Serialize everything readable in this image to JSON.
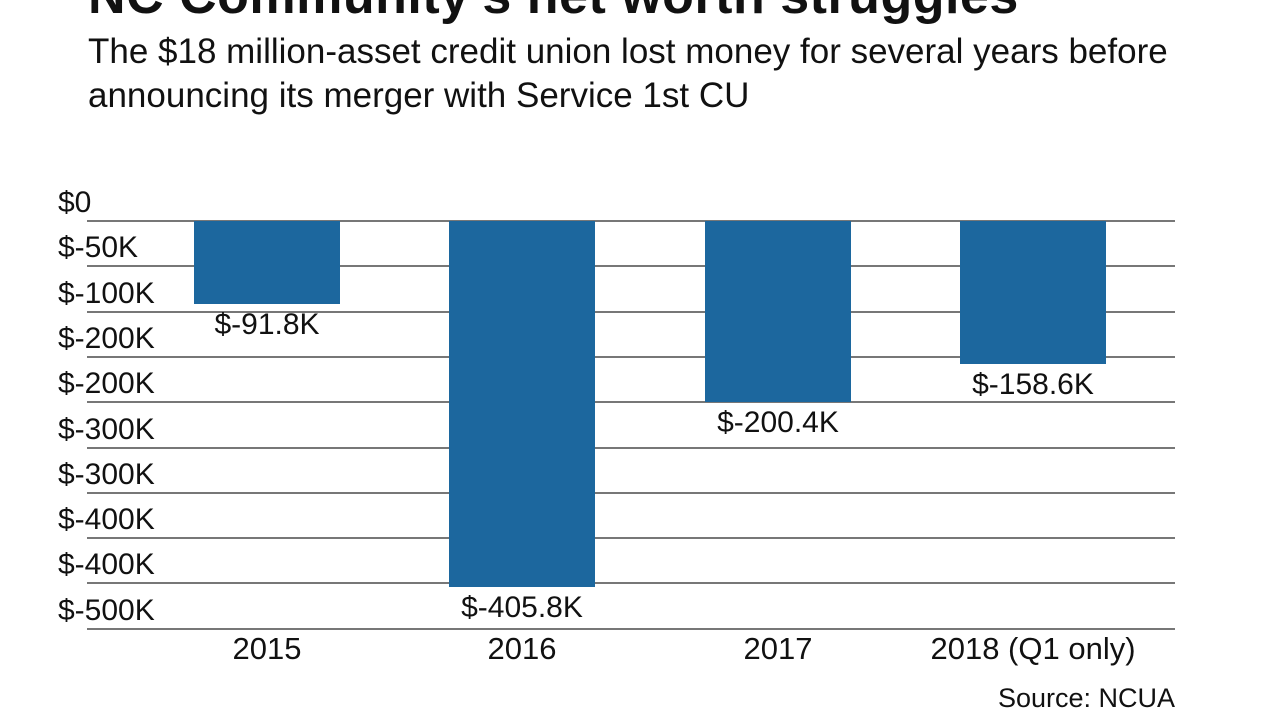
{
  "header": {
    "title": "NC Community's net worth struggles",
    "subtitle": "The $18 million-asset credit union lost money for several years before announcing its merger with Service 1st CU"
  },
  "source": "Source: NCUA",
  "colors": {
    "bar": "#1c679e",
    "grid": "#777777"
  },
  "chart_data": {
    "type": "bar",
    "title": "NC Community's net worth struggles",
    "subtitle": "The $18 million-asset credit union lost money for several years before announcing its merger with Service 1st CU",
    "categories": [
      "2015",
      "2016",
      "2017",
      "2018 (Q1 only)"
    ],
    "values": [
      -91.8,
      -405.8,
      -200.4,
      -158.6
    ],
    "value_labels": [
      "$-91.8K",
      "$-405.8K",
      "$-200.4K",
      "$-158.6K"
    ],
    "units": "thousands of dollars",
    "y_tick_labels": [
      "$0",
      "$-50K",
      "$-100K",
      "$-200K",
      "$-200K",
      "$-300K",
      "$-300K",
      "$-400K",
      "$-400K",
      "$-500K"
    ],
    "ylim": [
      -450,
      0
    ],
    "grid": true,
    "legend": null,
    "xlabel": "",
    "ylabel": "",
    "source": "Source: NCUA"
  }
}
